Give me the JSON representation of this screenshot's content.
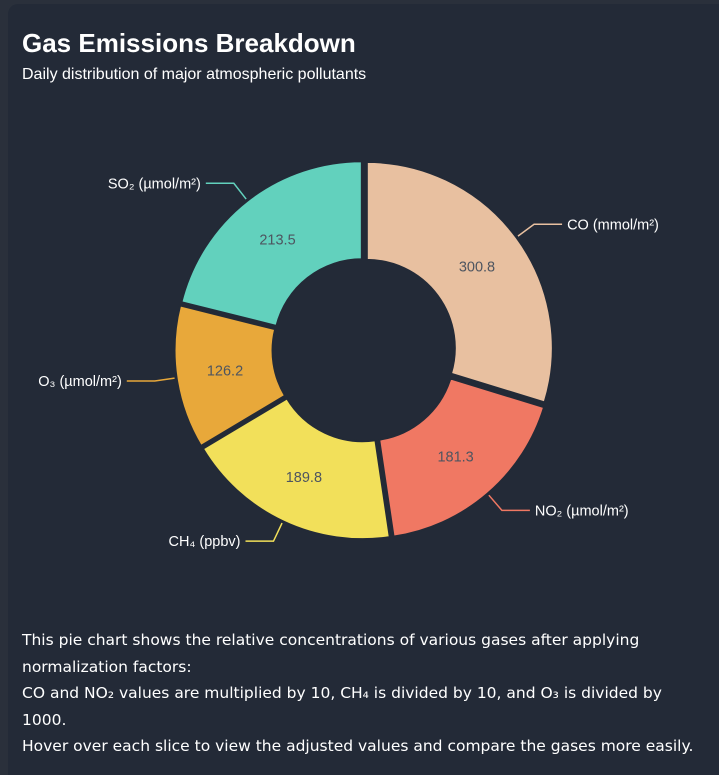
{
  "header": {
    "title": "Gas Emissions Breakdown",
    "subtitle": "Daily distribution of major atmospheric pollutants"
  },
  "chart_data": {
    "type": "pie",
    "donut": true,
    "categories": [
      "CO (mmol/m²)",
      "NO₂ (µmol/m²)",
      "CH₄ (ppbv)",
      "O₃ (µmol/m²)",
      "SO₂ (µmol/m²)"
    ],
    "values": [
      300.8,
      181.3,
      189.8,
      126.2,
      213.5
    ],
    "value_labels": [
      "300.8",
      "181.3",
      "189.8",
      "126.2",
      "213.5"
    ],
    "colors": [
      "#e8c0a0",
      "#f07863",
      "#f2e05a",
      "#e8a83a",
      "#62d1bd"
    ],
    "title": "Gas Emissions Breakdown",
    "subtitle": "Daily distribution of major atmospheric pollutants"
  },
  "description": {
    "line1": "This pie chart shows the relative concentrations of various gases after applying normalization factors:",
    "line2": "CO and NO₂ values are multiplied by 10, CH₄ is divided by 10, and O₃ is divided by 1000.",
    "line3": "Hover over each slice to view the adjusted values and compare the gases more easily."
  }
}
